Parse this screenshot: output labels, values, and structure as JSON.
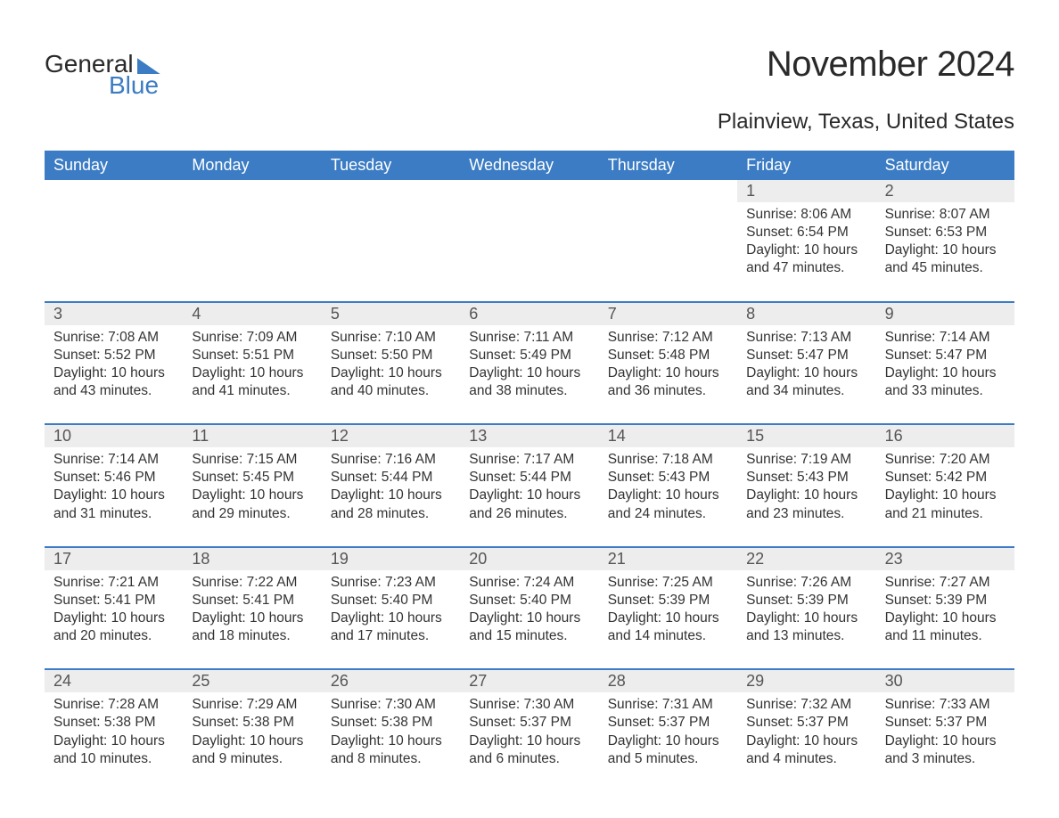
{
  "brand": {
    "text1": "General",
    "text2": "Blue",
    "accent": "#3b7cc4"
  },
  "title": "November 2024",
  "location": "Plainview, Texas, United States",
  "colors": {
    "header_bg": "#3b7cc4",
    "header_text": "#ffffff",
    "band_bg": "#ededed",
    "rule": "#3b7cc4",
    "page_bg": "#ffffff",
    "body_text": "#333333",
    "daynum_text": "#555555"
  },
  "days_of_week": [
    "Sunday",
    "Monday",
    "Tuesday",
    "Wednesday",
    "Thursday",
    "Friday",
    "Saturday"
  ],
  "weeks": [
    [
      null,
      null,
      null,
      null,
      null,
      {
        "n": "1",
        "sunrise": "Sunrise: 8:06 AM",
        "sunset": "Sunset: 6:54 PM",
        "daylight": "Daylight: 10 hours and 47 minutes."
      },
      {
        "n": "2",
        "sunrise": "Sunrise: 8:07 AM",
        "sunset": "Sunset: 6:53 PM",
        "daylight": "Daylight: 10 hours and 45 minutes."
      }
    ],
    [
      {
        "n": "3",
        "sunrise": "Sunrise: 7:08 AM",
        "sunset": "Sunset: 5:52 PM",
        "daylight": "Daylight: 10 hours and 43 minutes."
      },
      {
        "n": "4",
        "sunrise": "Sunrise: 7:09 AM",
        "sunset": "Sunset: 5:51 PM",
        "daylight": "Daylight: 10 hours and 41 minutes."
      },
      {
        "n": "5",
        "sunrise": "Sunrise: 7:10 AM",
        "sunset": "Sunset: 5:50 PM",
        "daylight": "Daylight: 10 hours and 40 minutes."
      },
      {
        "n": "6",
        "sunrise": "Sunrise: 7:11 AM",
        "sunset": "Sunset: 5:49 PM",
        "daylight": "Daylight: 10 hours and 38 minutes."
      },
      {
        "n": "7",
        "sunrise": "Sunrise: 7:12 AM",
        "sunset": "Sunset: 5:48 PM",
        "daylight": "Daylight: 10 hours and 36 minutes."
      },
      {
        "n": "8",
        "sunrise": "Sunrise: 7:13 AM",
        "sunset": "Sunset: 5:47 PM",
        "daylight": "Daylight: 10 hours and 34 minutes."
      },
      {
        "n": "9",
        "sunrise": "Sunrise: 7:14 AM",
        "sunset": "Sunset: 5:47 PM",
        "daylight": "Daylight: 10 hours and 33 minutes."
      }
    ],
    [
      {
        "n": "10",
        "sunrise": "Sunrise: 7:14 AM",
        "sunset": "Sunset: 5:46 PM",
        "daylight": "Daylight: 10 hours and 31 minutes."
      },
      {
        "n": "11",
        "sunrise": "Sunrise: 7:15 AM",
        "sunset": "Sunset: 5:45 PM",
        "daylight": "Daylight: 10 hours and 29 minutes."
      },
      {
        "n": "12",
        "sunrise": "Sunrise: 7:16 AM",
        "sunset": "Sunset: 5:44 PM",
        "daylight": "Daylight: 10 hours and 28 minutes."
      },
      {
        "n": "13",
        "sunrise": "Sunrise: 7:17 AM",
        "sunset": "Sunset: 5:44 PM",
        "daylight": "Daylight: 10 hours and 26 minutes."
      },
      {
        "n": "14",
        "sunrise": "Sunrise: 7:18 AM",
        "sunset": "Sunset: 5:43 PM",
        "daylight": "Daylight: 10 hours and 24 minutes."
      },
      {
        "n": "15",
        "sunrise": "Sunrise: 7:19 AM",
        "sunset": "Sunset: 5:43 PM",
        "daylight": "Daylight: 10 hours and 23 minutes."
      },
      {
        "n": "16",
        "sunrise": "Sunrise: 7:20 AM",
        "sunset": "Sunset: 5:42 PM",
        "daylight": "Daylight: 10 hours and 21 minutes."
      }
    ],
    [
      {
        "n": "17",
        "sunrise": "Sunrise: 7:21 AM",
        "sunset": "Sunset: 5:41 PM",
        "daylight": "Daylight: 10 hours and 20 minutes."
      },
      {
        "n": "18",
        "sunrise": "Sunrise: 7:22 AM",
        "sunset": "Sunset: 5:41 PM",
        "daylight": "Daylight: 10 hours and 18 minutes."
      },
      {
        "n": "19",
        "sunrise": "Sunrise: 7:23 AM",
        "sunset": "Sunset: 5:40 PM",
        "daylight": "Daylight: 10 hours and 17 minutes."
      },
      {
        "n": "20",
        "sunrise": "Sunrise: 7:24 AM",
        "sunset": "Sunset: 5:40 PM",
        "daylight": "Daylight: 10 hours and 15 minutes."
      },
      {
        "n": "21",
        "sunrise": "Sunrise: 7:25 AM",
        "sunset": "Sunset: 5:39 PM",
        "daylight": "Daylight: 10 hours and 14 minutes."
      },
      {
        "n": "22",
        "sunrise": "Sunrise: 7:26 AM",
        "sunset": "Sunset: 5:39 PM",
        "daylight": "Daylight: 10 hours and 13 minutes."
      },
      {
        "n": "23",
        "sunrise": "Sunrise: 7:27 AM",
        "sunset": "Sunset: 5:39 PM",
        "daylight": "Daylight: 10 hours and 11 minutes."
      }
    ],
    [
      {
        "n": "24",
        "sunrise": "Sunrise: 7:28 AM",
        "sunset": "Sunset: 5:38 PM",
        "daylight": "Daylight: 10 hours and 10 minutes."
      },
      {
        "n": "25",
        "sunrise": "Sunrise: 7:29 AM",
        "sunset": "Sunset: 5:38 PM",
        "daylight": "Daylight: 10 hours and 9 minutes."
      },
      {
        "n": "26",
        "sunrise": "Sunrise: 7:30 AM",
        "sunset": "Sunset: 5:38 PM",
        "daylight": "Daylight: 10 hours and 8 minutes."
      },
      {
        "n": "27",
        "sunrise": "Sunrise: 7:30 AM",
        "sunset": "Sunset: 5:37 PM",
        "daylight": "Daylight: 10 hours and 6 minutes."
      },
      {
        "n": "28",
        "sunrise": "Sunrise: 7:31 AM",
        "sunset": "Sunset: 5:37 PM",
        "daylight": "Daylight: 10 hours and 5 minutes."
      },
      {
        "n": "29",
        "sunrise": "Sunrise: 7:32 AM",
        "sunset": "Sunset: 5:37 PM",
        "daylight": "Daylight: 10 hours and 4 minutes."
      },
      {
        "n": "30",
        "sunrise": "Sunrise: 7:33 AM",
        "sunset": "Sunset: 5:37 PM",
        "daylight": "Daylight: 10 hours and 3 minutes."
      }
    ]
  ]
}
